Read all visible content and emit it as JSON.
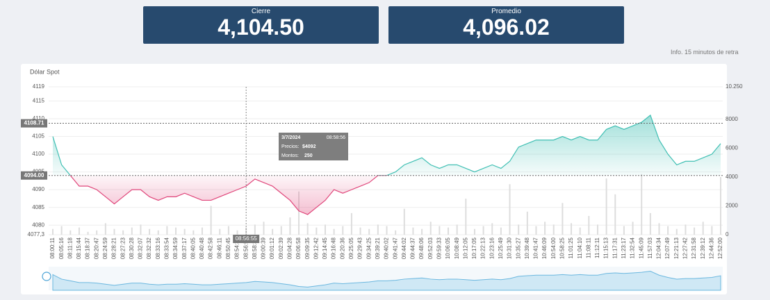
{
  "header": {
    "cards": [
      {
        "label": "Cierre",
        "value": "4,104.50"
      },
      {
        "label": "Promedio",
        "value": "4,096.02"
      }
    ],
    "note": "Info. 15 minutos de retra"
  },
  "chart_data": {
    "type": "line",
    "title": "Dólar Spot",
    "categories": [
      "08:00:11",
      "08:05:16",
      "08:11:18",
      "08:15:44",
      "08:18:37",
      "08:20:47",
      "08:24:59",
      "08:28:21",
      "08:27:23",
      "08:30:28",
      "08:32:07",
      "08:32:32",
      "08:33:16",
      "08:33:54",
      "08:34:59",
      "08:37:17",
      "08:40:05",
      "08:40:48",
      "08:42:58",
      "08:46:11",
      "08:50:45",
      "08:54:35",
      "08:56:55",
      "08:58:36",
      "09:00:39",
      "09:01:12",
      "09:02:39",
      "09:04:28",
      "09:06:58",
      "09:09:35",
      "09:12:42",
      "09:14:45",
      "09:16:48",
      "09:20:36",
      "09:25:05",
      "09:29:43",
      "09:34:25",
      "09:39:21",
      "09:40:02",
      "09:41:47",
      "09:44:02",
      "09:44:37",
      "09:48:06",
      "09:52:03",
      "09:59:33",
      "10:06:05",
      "10:08:49",
      "10:12:05",
      "10:17:05",
      "10:22:13",
      "10:23:16",
      "10:25:49",
      "10:31:30",
      "10:35:27",
      "10:39:48",
      "10:41:47",
      "10:46:09",
      "10:54:00",
      "10:58:25",
      "11:01:25",
      "11:04:10",
      "11:08:11",
      "11:12:11",
      "11:15:13",
      "11:17:31",
      "11:23:17",
      "11:32:54",
      "11:45:09",
      "11:57:03",
      "12:04:34",
      "12:07:49",
      "12:21:13",
      "12:27:42",
      "12:31:58",
      "12:39:12",
      "12:44:36",
      "12:52:00"
    ],
    "series": [
      {
        "name": "Precios",
        "color": "#3fbfb3",
        "color_below": "#e0457a",
        "values": [
          4105,
          4097,
          4094,
          4091,
          4091,
          4090,
          4088,
          4086,
          4088,
          4090,
          4090,
          4088,
          4087,
          4088,
          4088,
          4089,
          4088,
          4087,
          4087,
          4088,
          4089,
          4090,
          4091,
          4093,
          4092,
          4091,
          4089,
          4087,
          4084,
          4083,
          4085,
          4087,
          4090,
          4089,
          4090,
          4091,
          4092,
          4094,
          4094,
          4095,
          4097,
          4098,
          4099,
          4097,
          4096,
          4097,
          4097,
          4096,
          4095,
          4096,
          4097,
          4096,
          4098,
          4102,
          4103,
          4104,
          4104,
          4104,
          4105,
          4104,
          4105,
          4104,
          4104,
          4107,
          4108,
          4107,
          4108,
          4109,
          4111,
          4104,
          4100,
          4097,
          4098,
          4098,
          4099,
          4100,
          4103
        ]
      },
      {
        "name": "Montos",
        "axis": "y2",
        "color": "#dddddd",
        "values": [
          400,
          600,
          300,
          500,
          200,
          300,
          800,
          400,
          300,
          500,
          700,
          400,
          300,
          600,
          500,
          400,
          300,
          500,
          2000,
          400,
          600,
          300,
          500,
          700,
          900,
          400,
          600,
          1200,
          3000,
          800,
          500,
          700,
          400,
          600,
          1500,
          500,
          400,
          700,
          600,
          300,
          1800,
          500,
          400,
          900,
          600,
          500,
          700,
          2500,
          400,
          600,
          800,
          500,
          3500,
          700,
          1600,
          600,
          900,
          700,
          2200,
          800,
          500,
          1300,
          700,
          3900,
          2800,
          600,
          900,
          4200,
          1500,
          800,
          600,
          400,
          700,
          500,
          900,
          600,
          4000
        ]
      }
    ],
    "ylim": [
      4077.3,
      4119
    ],
    "yticks": [
      4119,
      4115,
      4110,
      4105,
      4100,
      4095,
      4090,
      4085,
      4080,
      {
        "value": 4077.3,
        "label": "4077,3"
      }
    ],
    "y2lim": [
      0,
      10250
    ],
    "y2ticks": [
      {
        "value": 10250,
        "label": "10.250"
      },
      8000,
      6000,
      4000,
      2000,
      0
    ],
    "reference_lines": [
      4108.71,
      {
        "value": 4094,
        "label": "4094.00"
      }
    ],
    "crosshair": "08:56:55",
    "tooltip": {
      "date": "3/7/2024",
      "time": "08:58:56",
      "price_label": "Precios:",
      "price": "$4092",
      "amount_label": "Montos:",
      "amount": 250
    },
    "grid": true
  }
}
